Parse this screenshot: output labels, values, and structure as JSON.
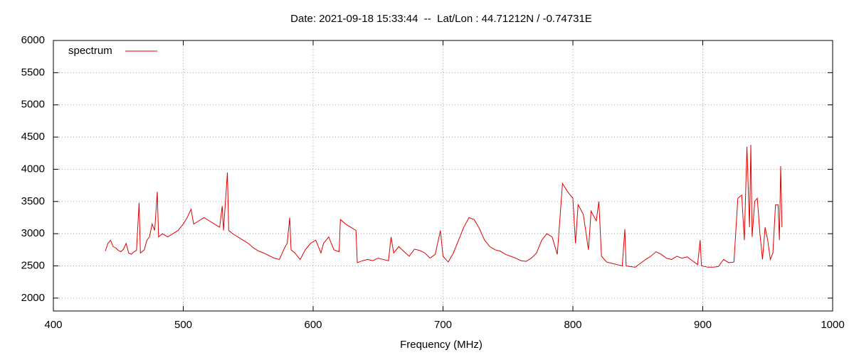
{
  "chart_data": {
    "type": "line",
    "title": "Date: 2021-09-18 15:33:44  --  Lat/Lon : 44.71212N / -0.74731E",
    "xlabel": "Frequency (MHz)",
    "xlim": [
      400,
      1000
    ],
    "xticks": [
      400,
      500,
      600,
      700,
      800,
      900,
      1000
    ],
    "ylim": [
      1800,
      6000
    ],
    "yticks": [
      2000,
      2500,
      3000,
      3500,
      4000,
      4500,
      5000,
      5500,
      6000
    ],
    "grid": true,
    "legend": "top-left",
    "x": [
      440,
      442,
      444,
      446,
      448,
      450,
      452,
      454,
      456,
      458,
      460,
      462,
      464,
      466,
      467,
      470,
      472,
      474,
      476,
      478,
      480,
      481,
      484,
      488,
      492,
      496,
      500,
      503,
      506,
      508,
      512,
      516,
      520,
      524,
      528,
      530,
      531,
      534,
      535,
      538,
      542,
      546,
      550,
      554,
      558,
      562,
      566,
      570,
      574,
      578,
      580,
      582,
      583,
      586,
      590,
      594,
      598,
      602,
      606,
      608,
      612,
      616,
      620,
      621,
      625,
      629,
      633,
      634,
      638,
      642,
      646,
      650,
      654,
      658,
      660,
      662,
      666,
      670,
      674,
      678,
      682,
      686,
      690,
      694,
      698,
      700,
      704,
      708,
      712,
      716,
      720,
      724,
      728,
      732,
      736,
      740,
      744,
      748,
      752,
      756,
      760,
      764,
      768,
      772,
      776,
      780,
      784,
      788,
      792,
      796,
      800,
      802,
      804,
      808,
      812,
      814,
      818,
      820,
      822,
      826,
      830,
      834,
      838,
      840,
      841,
      844,
      848,
      852,
      856,
      860,
      864,
      868,
      872,
      876,
      880,
      884,
      888,
      892,
      896,
      898,
      899,
      904,
      908,
      912,
      916,
      920,
      924,
      927,
      930,
      932,
      934,
      936,
      937,
      938,
      940,
      942,
      944,
      946,
      948,
      950,
      952,
      954,
      956,
      958,
      959,
      960,
      961
    ],
    "series": [
      {
        "name": "spectrum",
        "color": "#e00000",
        "values": [
          2730,
          2850,
          2900,
          2800,
          2780,
          2740,
          2720,
          2760,
          2850,
          2700,
          2680,
          2720,
          2740,
          3480,
          2700,
          2750,
          2900,
          2950,
          3150,
          3050,
          3650,
          2950,
          3000,
          2950,
          3000,
          3050,
          3150,
          3250,
          3380,
          3150,
          3200,
          3250,
          3200,
          3150,
          3100,
          3430,
          3050,
          3950,
          3050,
          3000,
          2950,
          2900,
          2850,
          2780,
          2730,
          2700,
          2660,
          2620,
          2600,
          2780,
          2850,
          3250,
          2750,
          2700,
          2600,
          2750,
          2850,
          2900,
          2700,
          2850,
          2950,
          2750,
          2720,
          3220,
          3150,
          3100,
          3050,
          2550,
          2580,
          2600,
          2580,
          2620,
          2600,
          2580,
          2950,
          2700,
          2800,
          2720,
          2650,
          2760,
          2740,
          2700,
          2620,
          2680,
          3050,
          2650,
          2560,
          2700,
          2900,
          3100,
          3250,
          3220,
          3080,
          2900,
          2800,
          2750,
          2730,
          2680,
          2650,
          2620,
          2580,
          2570,
          2620,
          2700,
          2900,
          3000,
          2950,
          2680,
          3780,
          3650,
          3550,
          2850,
          3450,
          3300,
          2750,
          3350,
          3200,
          3500,
          2650,
          2560,
          2540,
          2520,
          2500,
          3070,
          2500,
          2490,
          2480,
          2540,
          2600,
          2650,
          2720,
          2680,
          2620,
          2600,
          2650,
          2620,
          2640,
          2580,
          2520,
          2900,
          2500,
          2480,
          2480,
          2490,
          2600,
          2550,
          2560,
          3550,
          3600,
          2900,
          4350,
          3100,
          4380,
          2950,
          3500,
          3550,
          3000,
          2600,
          3100,
          2900,
          2600,
          2700,
          3450,
          3450,
          2900,
          4050,
          3100
        ]
      }
    ]
  }
}
